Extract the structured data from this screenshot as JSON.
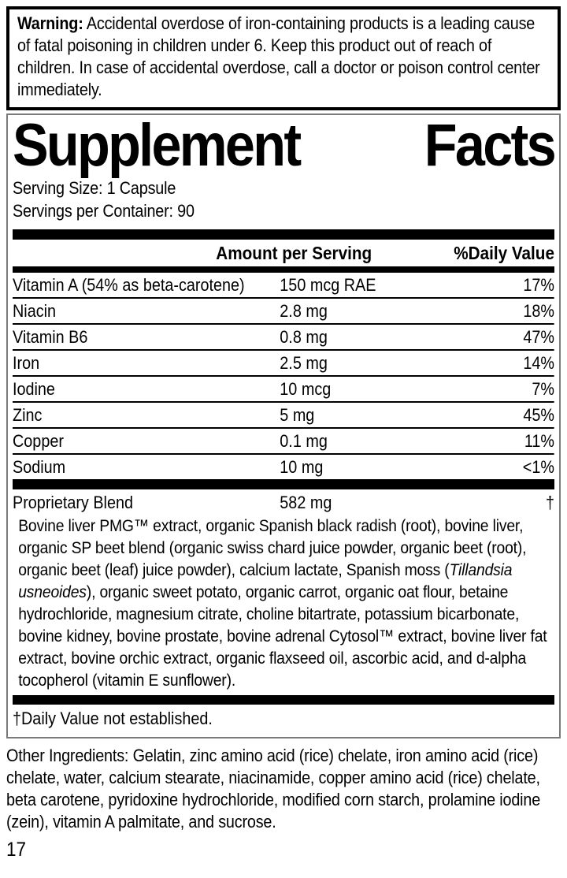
{
  "warning": {
    "label": "Warning:",
    "text": " Accidental overdose of iron-containing products is a leading cause of fatal poisoning in children under 6. Keep this product out of reach of children. In case of accidental overdose, call a doctor or poison control center immediately."
  },
  "supplement_facts": {
    "title_word1": "Supplement",
    "title_word2": "Facts",
    "serving_size": "Serving Size: 1 Capsule",
    "servings_per_container": "Servings per Container: 90",
    "columns": {
      "amount": "Amount per Serving",
      "daily_value": "%Daily Value"
    },
    "nutrients": [
      {
        "name": "Vitamin A (54% as beta-carotene)",
        "amount": "150 mcg RAE",
        "daily_value": "17%"
      },
      {
        "name": "Niacin",
        "amount": "2.8 mg",
        "daily_value": "18%"
      },
      {
        "name": "Vitamin B6",
        "amount": "0.8 mg",
        "daily_value": "47%"
      },
      {
        "name": "Iron",
        "amount": "2.5 mg",
        "daily_value": "14%"
      },
      {
        "name": "Iodine",
        "amount": "10 mcg",
        "daily_value": "7%"
      },
      {
        "name": "Zinc",
        "amount": "5 mg",
        "daily_value": "45%"
      },
      {
        "name": "Copper",
        "amount": "0.1 mg",
        "daily_value": "11%"
      },
      {
        "name": "Sodium",
        "amount": "10 mg",
        "daily_value": "<1%"
      }
    ],
    "proprietary_blend": {
      "name": "Proprietary Blend",
      "amount": "582 mg",
      "daily_value": "†",
      "description_part1": "Bovine liver PMG™ extract, organic Spanish black radish (root), bovine liver, organic SP beet blend (organic swiss chard juice powder, organic beet (root), organic beet (leaf) juice powder), calcium lactate, Spanish moss (",
      "description_italic": "Tillandsia usneoides",
      "description_part2": "), organic sweet potato, organic carrot, organic oat flour, betaine hydrochloride, magnesium citrate, choline bitartrate, potassium bicarbonate, bovine kidney, bovine prostate, bovine adrenal Cytosol™ extract, bovine liver fat extract, bovine orchic extract, organic flaxseed oil, ascorbic acid, and d-alpha tocopherol (vitamin E sunflower)."
    },
    "footnote": "†Daily Value not established."
  },
  "other_ingredients": "Other Ingredients: Gelatin, zinc amino acid (rice) chelate, iron amino acid (rice) chelate, water, calcium stearate, niacinamide, copper amino acid (rice) chelate, beta carotene, pyridoxine hydrochloride, modified corn starch, prolamine iodine (zein), vitamin A palmitate, and sucrose.",
  "page_number": "17"
}
